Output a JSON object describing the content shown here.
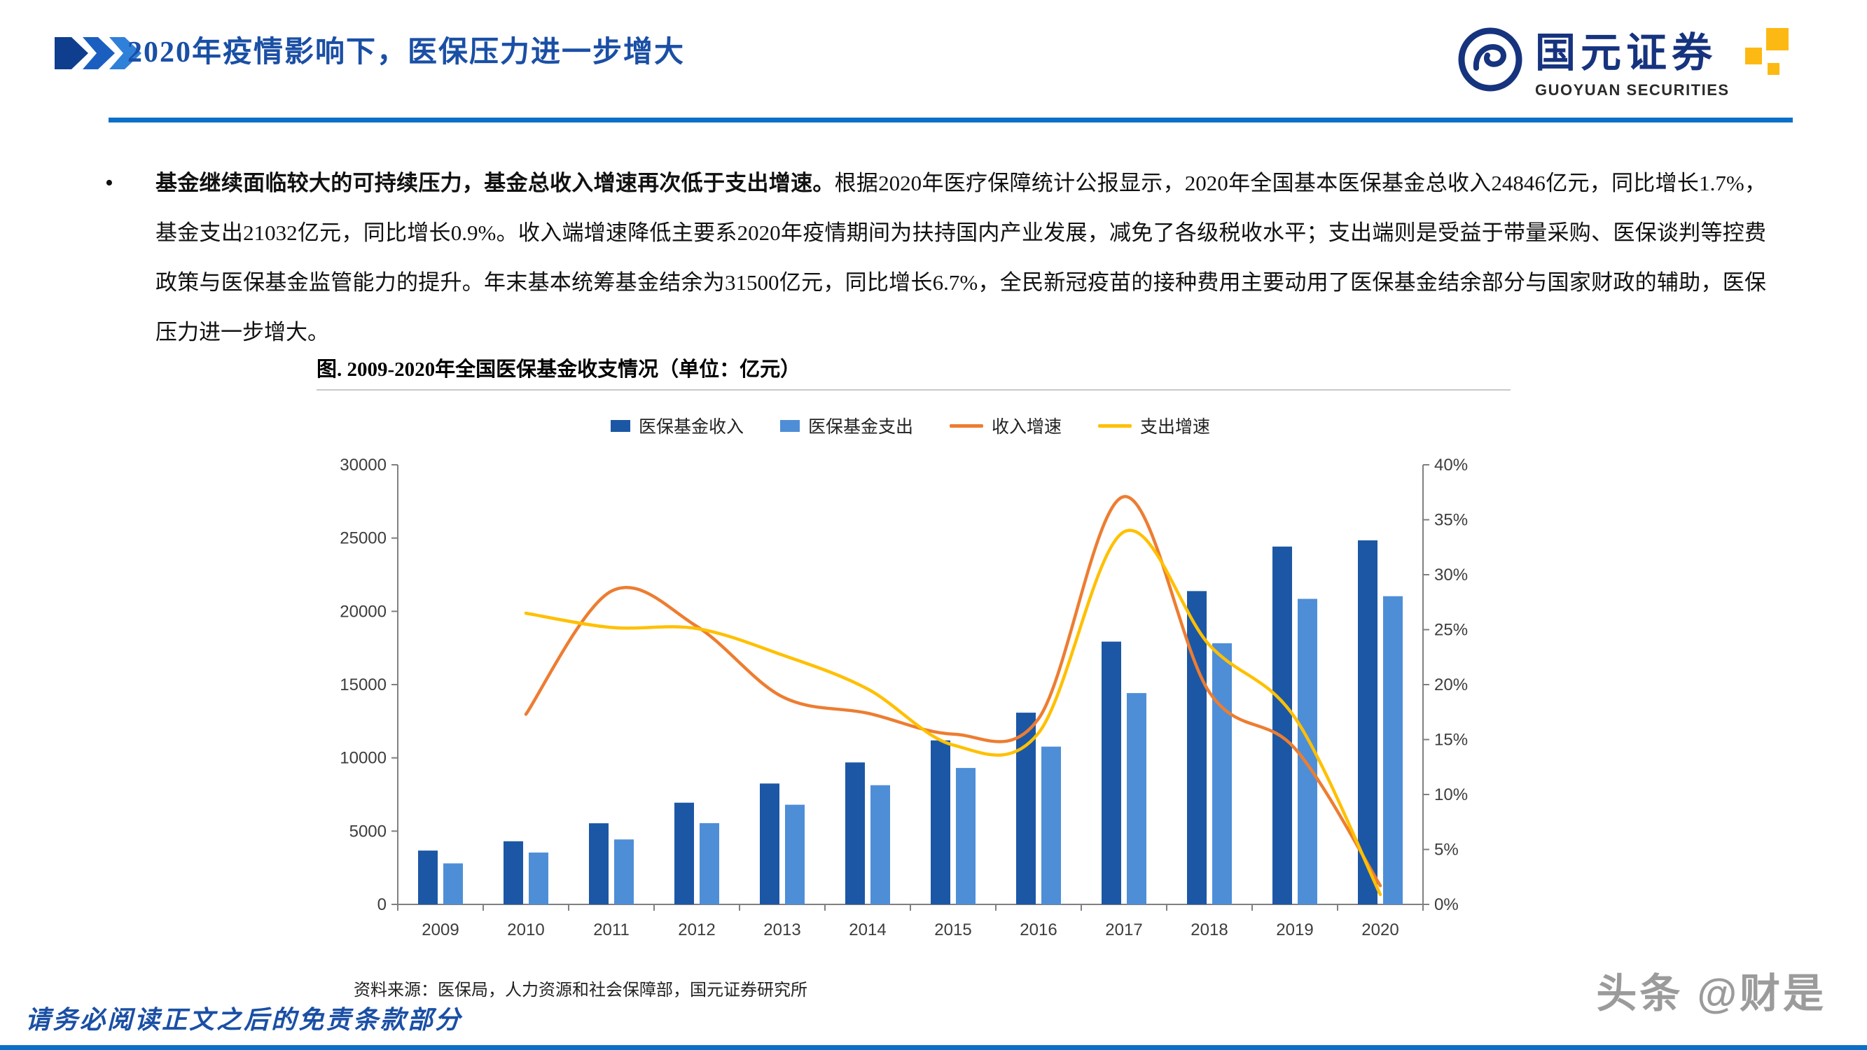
{
  "colors": {
    "accent_blue": "#1A4FA5",
    "rule_blue": "#0C70C9",
    "logo_navy": "#16337E",
    "logo_yellow": "#FDB913",
    "watermark_gray": "#9B9B9B",
    "axis_gray": "#808080"
  },
  "header": {
    "title": "2020年疫情影响下，医保压力进一步增大",
    "logo_name": "国元证券",
    "logo_subtitle": "GUOYUAN SECURITIES"
  },
  "body": {
    "bullet": "•",
    "lead": "基金继续面临较大的可持续压力，基金总收入增速再次低于支出增速。",
    "rest": "根据2020年医疗保障统计公报显示，2020年全国基本医保基金总收入24846亿元，同比增长1.7%，基金支出21032亿元，同比增长0.9%。收入端增速降低主要系2020年疫情期间为扶持国内产业发展，减免了各级税收水平；支出端则是受益于带量采购、医保谈判等控费政策与医保基金监管能力的提升。年末基本统筹基金结余为31500亿元，同比增长6.7%，全民新冠疫苗的接种费用主要动用了医保基金结余部分与国家财政的辅助，医保压力进一步增大。"
  },
  "chart_data": {
    "type": "bar",
    "subtype": "combo_bar_line",
    "title": "图. 2009-2020年全国医保基金收支情况（单位：亿元）",
    "categories": [
      "2009",
      "2010",
      "2011",
      "2012",
      "2013",
      "2014",
      "2015",
      "2016",
      "2017",
      "2018",
      "2019",
      "2020"
    ],
    "series": [
      {
        "name": "医保基金收入",
        "type": "bar",
        "axis": "left",
        "color": "#1C57A5",
        "values": [
          3672,
          4309,
          5539,
          6939,
          8248,
          9687,
          11193,
          13084,
          17932,
          21384,
          24421,
          24846
        ]
      },
      {
        "name": "医保基金支出",
        "type": "bar",
        "axis": "left",
        "color": "#4E8ED7",
        "values": [
          2797,
          3538,
          4431,
          5544,
          6801,
          8134,
          9312,
          10767,
          14422,
          17822,
          20854,
          21032
        ]
      },
      {
        "name": "收入增速",
        "type": "line",
        "axis": "right",
        "color": "#ED7D31",
        "values": [
          null,
          17.3,
          28.5,
          25.3,
          18.9,
          17.4,
          15.5,
          16.9,
          37.1,
          19.3,
          14.2,
          1.7
        ]
      },
      {
        "name": "支出增速",
        "type": "line",
        "axis": "right",
        "color": "#FFC000",
        "values": [
          null,
          26.5,
          25.2,
          25.1,
          22.7,
          19.6,
          14.5,
          15.6,
          33.9,
          23.6,
          17.0,
          0.9
        ]
      }
    ],
    "left_axis": {
      "min": 0,
      "max": 30000,
      "step": 5000,
      "tick_labels": [
        "0",
        "5000",
        "10000",
        "15000",
        "20000",
        "25000",
        "30000"
      ]
    },
    "right_axis": {
      "min": 0,
      "max": 40,
      "step": 5,
      "tick_labels": [
        "0%",
        "5%",
        "10%",
        "15%",
        "20%",
        "25%",
        "30%",
        "35%",
        "40%"
      ]
    },
    "legend_position": "top",
    "grid": false
  },
  "figure": {
    "source": "资料来源：医保局，人力资源和社会保障部，国元证券研究所"
  },
  "footer": {
    "disclaimer": "请务必阅读正文之后的免责条款部分",
    "watermark": "头条 @财是"
  }
}
